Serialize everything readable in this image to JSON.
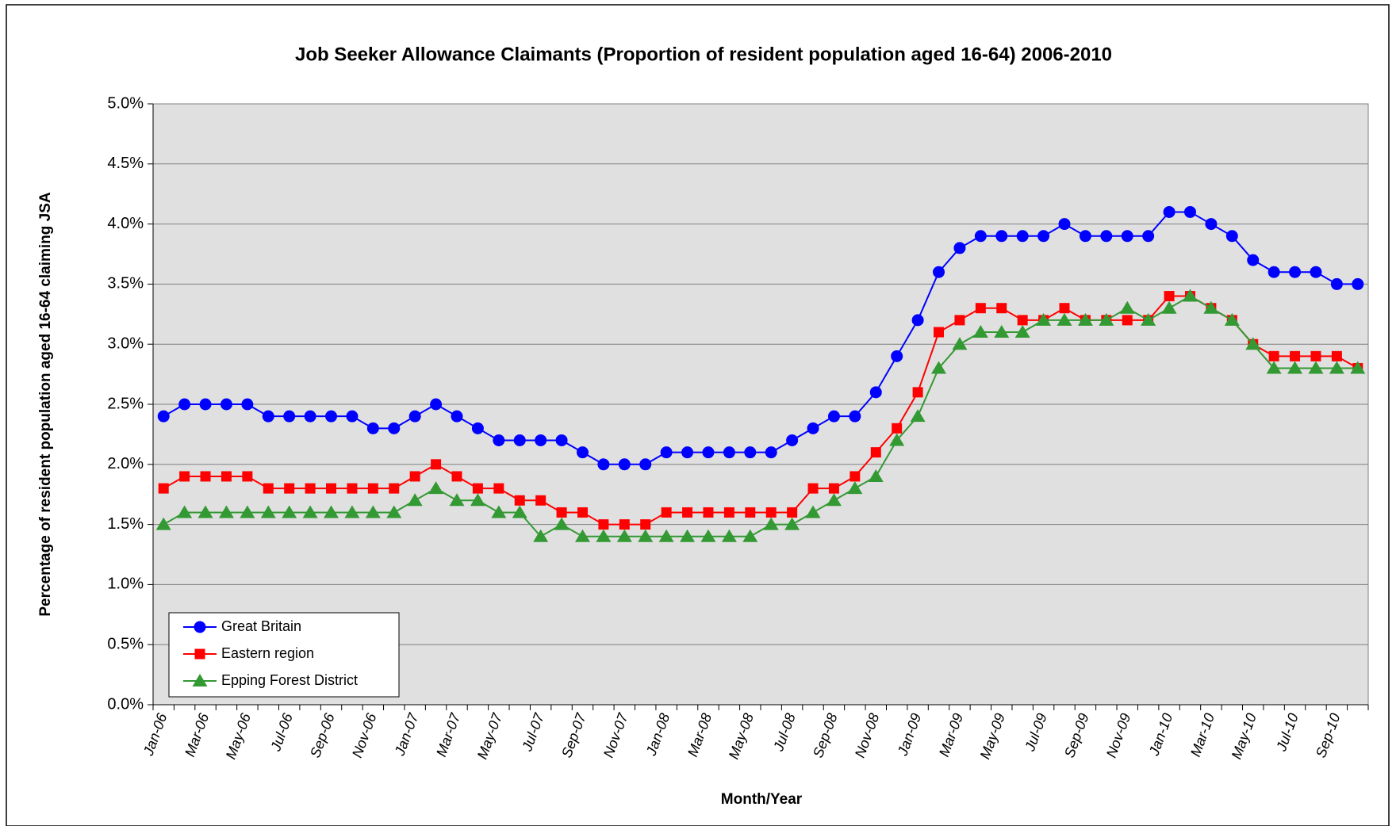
{
  "chart_data": {
    "type": "line",
    "title": "Job Seeker Allowance Claimants (Proportion of resident population aged 16-64) 2006-2010",
    "x_label": "Month/Year",
    "y_label": "Percentage of resident population aged 16-64 claiming JSA",
    "categories": [
      "Jan-06",
      null,
      "Mar-06",
      null,
      "May-06",
      null,
      "Jul-06",
      null,
      "Sep-06",
      null,
      "Nov-06",
      null,
      "Jan-07",
      null,
      "Mar-07",
      null,
      "May-07",
      null,
      "Jul-07",
      null,
      "Sep-07",
      null,
      "Nov-07",
      null,
      "Jan-08",
      null,
      "Mar-08",
      null,
      "May-08",
      null,
      "Jul-08",
      null,
      "Sep-08",
      null,
      "Nov-08",
      null,
      "Jan-09",
      null,
      "Mar-09",
      null,
      "May-09",
      null,
      "Jul-09",
      null,
      "Sep-09",
      null,
      "Nov-09",
      null,
      "Jan-10",
      null,
      "Mar-10",
      null,
      "May-10",
      null,
      "Jul-10",
      null,
      "Sep-10",
      null
    ],
    "series": [
      {
        "name": "Great Britain",
        "color": "#0000ff",
        "marker": "circle",
        "values": [
          2.4,
          2.5,
          2.5,
          2.5,
          2.5,
          2.4,
          2.4,
          2.4,
          2.4,
          2.4,
          2.3,
          2.3,
          2.4,
          2.5,
          2.4,
          2.3,
          2.2,
          2.2,
          2.2,
          2.2,
          2.1,
          2.0,
          2.0,
          2.0,
          2.1,
          2.1,
          2.1,
          2.1,
          2.1,
          2.1,
          2.2,
          2.3,
          2.4,
          2.4,
          2.6,
          2.9,
          3.2,
          3.6,
          3.8,
          3.9,
          3.9,
          3.9,
          3.9,
          4.0,
          3.9,
          3.9,
          3.9,
          3.9,
          4.1,
          4.1,
          4.0,
          3.9,
          3.7,
          3.6,
          3.6,
          3.6,
          3.5,
          3.5
        ]
      },
      {
        "name": "Eastern region",
        "color": "#ff0000",
        "marker": "square",
        "values": [
          1.8,
          1.9,
          1.9,
          1.9,
          1.9,
          1.8,
          1.8,
          1.8,
          1.8,
          1.8,
          1.8,
          1.8,
          1.9,
          2.0,
          1.9,
          1.8,
          1.8,
          1.7,
          1.7,
          1.6,
          1.6,
          1.5,
          1.5,
          1.5,
          1.6,
          1.6,
          1.6,
          1.6,
          1.6,
          1.6,
          1.6,
          1.8,
          1.8,
          1.9,
          2.1,
          2.3,
          2.6,
          3.1,
          3.2,
          3.3,
          3.3,
          3.2,
          3.2,
          3.3,
          3.2,
          3.2,
          3.2,
          3.2,
          3.4,
          3.4,
          3.3,
          3.2,
          3.0,
          2.9,
          2.9,
          2.9,
          2.9,
          2.8
        ]
      },
      {
        "name": "Epping Forest District",
        "color": "#339933",
        "marker": "triangle",
        "values": [
          1.5,
          1.6,
          1.6,
          1.6,
          1.6,
          1.6,
          1.6,
          1.6,
          1.6,
          1.6,
          1.6,
          1.6,
          1.7,
          1.8,
          1.7,
          1.7,
          1.6,
          1.6,
          1.4,
          1.5,
          1.4,
          1.4,
          1.4,
          1.4,
          1.4,
          1.4,
          1.4,
          1.4,
          1.4,
          1.5,
          1.5,
          1.6,
          1.7,
          1.8,
          1.9,
          2.2,
          2.4,
          2.8,
          3.0,
          3.1,
          3.1,
          3.1,
          3.2,
          3.2,
          3.2,
          3.2,
          3.3,
          3.2,
          3.3,
          3.4,
          3.3,
          3.2,
          3.0,
          2.8,
          2.8,
          2.8,
          2.8,
          2.8
        ]
      }
    ],
    "ylim": [
      0,
      5
    ],
    "yticks": [
      {
        "value": 0,
        "label": "0.0%"
      },
      {
        "value": 0.5,
        "label": "0.5%"
      },
      {
        "value": 1,
        "label": "1.0%"
      },
      {
        "value": 1.5,
        "label": "1.5%"
      },
      {
        "value": 2,
        "label": "2.0%"
      },
      {
        "value": 2.5,
        "label": "2.5%"
      },
      {
        "value": 3,
        "label": "3.0%"
      },
      {
        "value": 3.5,
        "label": "3.5%"
      },
      {
        "value": 4,
        "label": "4.0%"
      },
      {
        "value": 4.5,
        "label": "4.5%"
      },
      {
        "value": 5,
        "label": "5.0%"
      }
    ],
    "grid": true,
    "legend_position": "lower left"
  }
}
